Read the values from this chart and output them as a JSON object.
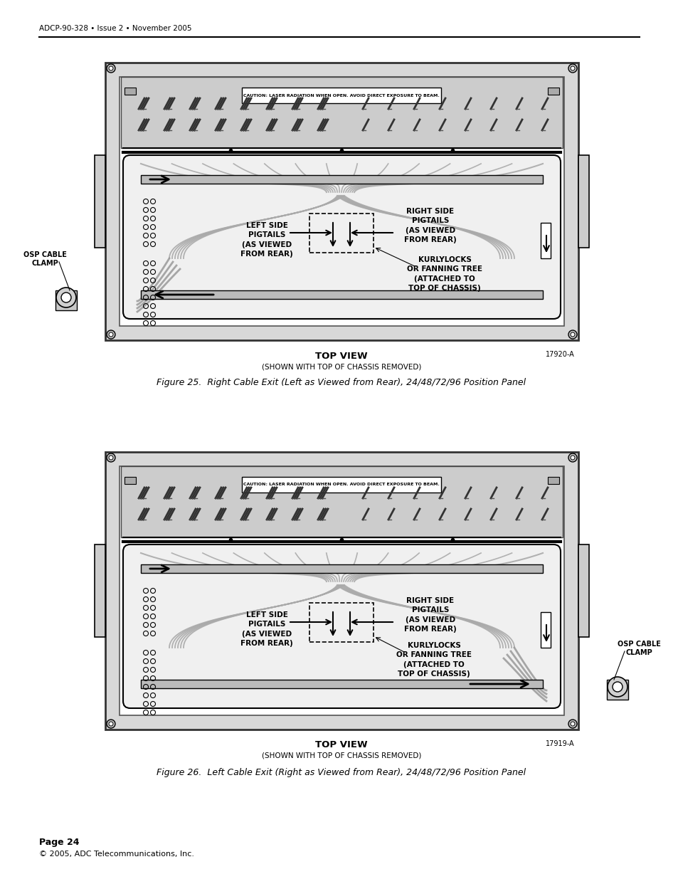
{
  "header_text": "ADCP-90-328 • Issue 2 • November 2005",
  "footer_page": "Page 24",
  "footer_copy": "© 2005, ADC Telecommunications, Inc.",
  "fig25_caption": "Figure 25.  Right Cable Exit (Left as Viewed from Rear), 24/48/72/96 Position Panel",
  "fig26_caption": "Figure 26.  Left Cable Exit (Right as Viewed from Rear), 24/48/72/96 Position Panel",
  "fig25_top_label": "TOP VIEW",
  "fig25_sub_label": "(SHOWN WITH TOP OF CHASSIS REMOVED)",
  "fig25_part_num": "17920-A",
  "fig26_top_label": "TOP VIEW",
  "fig26_sub_label": "(SHOWN WITH TOP OF CHASSIS REMOVED)",
  "fig26_part_num": "17919-A",
  "label_left_side": "LEFT SIDE\nPIGTAILS\n(AS VIEWED\nFROM REAR)",
  "label_right_side": "RIGHT SIDE\nPIGTAILS\n(AS VIEWED\nFROM REAR)",
  "label_kurly25": "KURLYLOCKS\nOR FANNING TREE\n(ATTACHED TO\nTOP OF CHASSIS)",
  "label_kurly26": "KURLYLOCKS\nOR FANNING TREE\n(ATTACHED TO\nTOP OF CHASSIS)",
  "label_osp_clamp": "OSP CABLE\nCLAMP",
  "bg_color": "#ffffff",
  "gray_light": "#e8e8e8",
  "gray_med": "#c0c0c0",
  "gray_dark": "#888888",
  "cable_gray": "#aaaaaa",
  "black": "#000000"
}
